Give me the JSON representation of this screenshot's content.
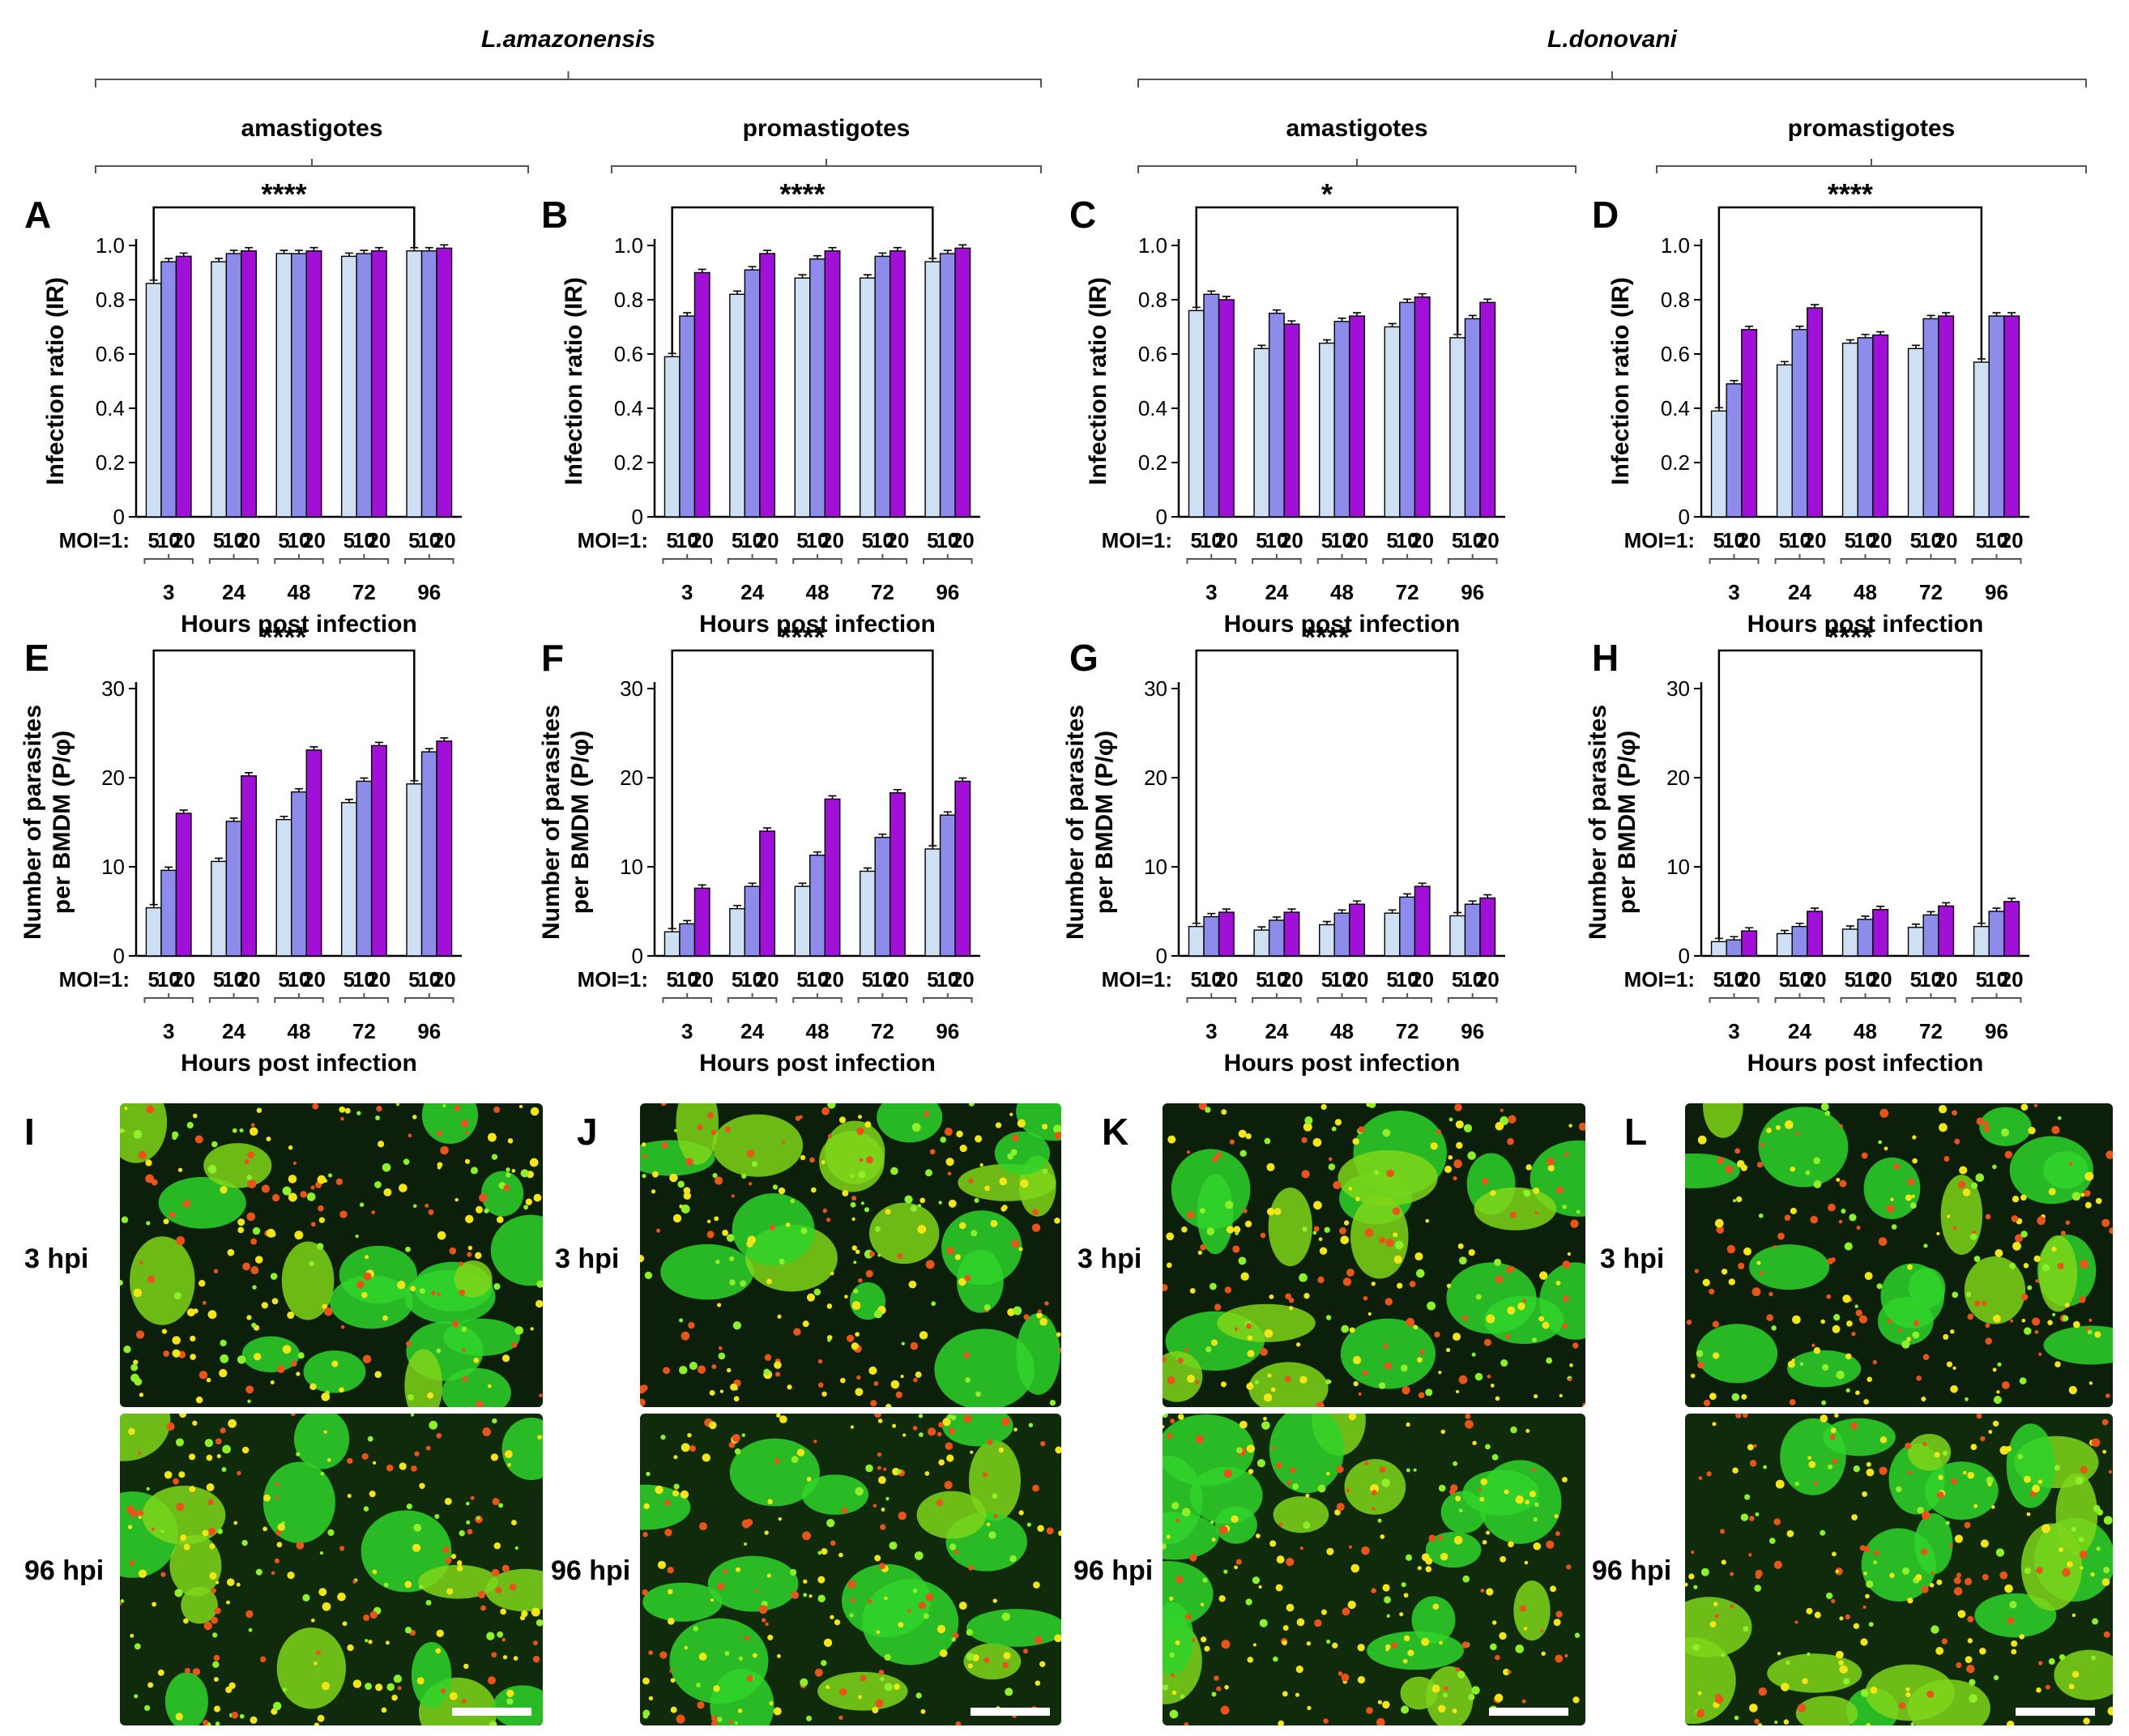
{
  "figure": {
    "species": [
      "L.amazonensis",
      "L.donovani"
    ],
    "stages": [
      "amastigotes",
      "promastigotes",
      "amastigotes",
      "promastigotes"
    ],
    "moi_prefix": "MOI=1:",
    "moi_levels": [
      "5",
      "10",
      "20"
    ],
    "series_colors": [
      "#cfe0f5",
      "#8d8cea",
      "#a010d6"
    ],
    "micrograph_panels": [
      {
        "letter": "I",
        "top_label": "3 hpi",
        "bottom_label": "96 hpi"
      },
      {
        "letter": "J",
        "top_label": "3 hpi",
        "bottom_label": "96 hpi"
      },
      {
        "letter": "K",
        "top_label": "3 hpi",
        "bottom_label": "96 hpi"
      },
      {
        "letter": "L",
        "top_label": "3 hpi",
        "bottom_label": "96 hpi"
      }
    ]
  },
  "chart_data": [
    {
      "panel": "A",
      "type": "bar",
      "species": "L.amazonensis",
      "stage": "amastigotes",
      "ylabel": "Infection ratio (IR)",
      "xlabel": "Hours post infection",
      "categories": [
        "3",
        "24",
        "48",
        "72",
        "96"
      ],
      "ylim": [
        0,
        1.0
      ],
      "yticks": [
        "0",
        "0.2",
        "0.4",
        "0.6",
        "0.8",
        "1.0"
      ],
      "significance": "****",
      "series": [
        {
          "name": "5",
          "values": [
            0.86,
            0.94,
            0.97,
            0.96,
            0.98
          ]
        },
        {
          "name": "10",
          "values": [
            0.94,
            0.97,
            0.97,
            0.97,
            0.98
          ]
        },
        {
          "name": "20",
          "values": [
            0.96,
            0.98,
            0.98,
            0.98,
            0.99
          ]
        }
      ]
    },
    {
      "panel": "B",
      "type": "bar",
      "species": "L.amazonensis",
      "stage": "promastigotes",
      "ylabel": "Infection ratio (IR)",
      "xlabel": "Hours post infection",
      "categories": [
        "3",
        "24",
        "48",
        "72",
        "96"
      ],
      "ylim": [
        0,
        1.0
      ],
      "yticks": [
        "0",
        "0.2",
        "0.4",
        "0.6",
        "0.8",
        "1.0"
      ],
      "significance": "****",
      "series": [
        {
          "name": "5",
          "values": [
            0.59,
            0.82,
            0.88,
            0.88,
            0.94
          ]
        },
        {
          "name": "10",
          "values": [
            0.74,
            0.91,
            0.95,
            0.96,
            0.97
          ]
        },
        {
          "name": "20",
          "values": [
            0.9,
            0.97,
            0.98,
            0.98,
            0.99
          ]
        }
      ]
    },
    {
      "panel": "C",
      "type": "bar",
      "species": "L.donovani",
      "stage": "amastigotes",
      "ylabel": "Infection ratio (IR)",
      "xlabel": "Hours post infection",
      "categories": [
        "3",
        "24",
        "48",
        "72",
        "96"
      ],
      "ylim": [
        0,
        1.0
      ],
      "yticks": [
        "0",
        "0.2",
        "0.4",
        "0.6",
        "0.8",
        "1.0"
      ],
      "significance": "*",
      "series": [
        {
          "name": "5",
          "values": [
            0.76,
            0.62,
            0.64,
            0.7,
            0.66
          ]
        },
        {
          "name": "10",
          "values": [
            0.82,
            0.75,
            0.72,
            0.79,
            0.73
          ]
        },
        {
          "name": "20",
          "values": [
            0.8,
            0.71,
            0.74,
            0.81,
            0.79
          ]
        }
      ]
    },
    {
      "panel": "D",
      "type": "bar",
      "species": "L.donovani",
      "stage": "promastigotes",
      "ylabel": "Infection ratio (IR)",
      "xlabel": "Hours post infection",
      "categories": [
        "3",
        "24",
        "48",
        "72",
        "96"
      ],
      "ylim": [
        0,
        1.0
      ],
      "yticks": [
        "0",
        "0.2",
        "0.4",
        "0.6",
        "0.8",
        "1.0"
      ],
      "significance": "****",
      "series": [
        {
          "name": "5",
          "values": [
            0.39,
            0.56,
            0.64,
            0.62,
            0.57
          ]
        },
        {
          "name": "10",
          "values": [
            0.49,
            0.69,
            0.66,
            0.73,
            0.74
          ]
        },
        {
          "name": "20",
          "values": [
            0.69,
            0.77,
            0.67,
            0.74,
            0.74
          ]
        }
      ]
    },
    {
      "panel": "E",
      "type": "bar",
      "species": "L.amazonensis",
      "stage": "amastigotes",
      "ylabel": "Number of parasites per BMDM (P/φ)",
      "xlabel": "Hours post infection",
      "categories": [
        "3",
        "24",
        "48",
        "72",
        "96"
      ],
      "ylim": [
        0,
        30
      ],
      "yticks": [
        "0",
        "10",
        "20",
        "30"
      ],
      "significance": "****",
      "series": [
        {
          "name": "5",
          "values": [
            5.4,
            10.6,
            15.3,
            17.2,
            19.3
          ]
        },
        {
          "name": "10",
          "values": [
            9.6,
            15.1,
            18.4,
            19.6,
            22.9
          ]
        },
        {
          "name": "20",
          "values": [
            16.0,
            20.2,
            23.1,
            23.6,
            24.1
          ]
        }
      ]
    },
    {
      "panel": "F",
      "type": "bar",
      "species": "L.amazonensis",
      "stage": "promastigotes",
      "ylabel": "Number of parasites per BMDM (P/φ)",
      "xlabel": "Hours post infection",
      "categories": [
        "3",
        "24",
        "48",
        "72",
        "96"
      ],
      "ylim": [
        0,
        30
      ],
      "yticks": [
        "0",
        "10",
        "20",
        "30"
      ],
      "significance": "****",
      "series": [
        {
          "name": "5",
          "values": [
            2.7,
            5.3,
            7.8,
            9.5,
            12.0
          ]
        },
        {
          "name": "10",
          "values": [
            3.6,
            7.8,
            11.3,
            13.3,
            15.8
          ]
        },
        {
          "name": "20",
          "values": [
            7.6,
            14.0,
            17.6,
            18.3,
            19.6
          ]
        }
      ]
    },
    {
      "panel": "G",
      "type": "bar",
      "species": "L.donovani",
      "stage": "amastigotes",
      "ylabel": "Number of parasites per BMDM (P/φ)",
      "xlabel": "Hours post infection",
      "categories": [
        "3",
        "24",
        "48",
        "72",
        "96"
      ],
      "ylim": [
        0,
        30
      ],
      "yticks": [
        "0",
        "10",
        "20",
        "30"
      ],
      "significance": "****",
      "series": [
        {
          "name": "5",
          "values": [
            3.3,
            2.9,
            3.5,
            4.8,
            4.5
          ]
        },
        {
          "name": "10",
          "values": [
            4.4,
            4.0,
            4.8,
            6.6,
            5.8
          ]
        },
        {
          "name": "20",
          "values": [
            4.9,
            4.9,
            5.8,
            7.8,
            6.5
          ]
        }
      ]
    },
    {
      "panel": "H",
      "type": "bar",
      "species": "L.donovani",
      "stage": "promastigotes",
      "ylabel": "Number of parasites per BMDM (P/φ)",
      "xlabel": "Hours post infection",
      "categories": [
        "3",
        "24",
        "48",
        "72",
        "96"
      ],
      "ylim": [
        0,
        30
      ],
      "yticks": [
        "0",
        "10",
        "20",
        "30"
      ],
      "significance": "****",
      "series": [
        {
          "name": "5",
          "values": [
            1.6,
            2.5,
            3.0,
            3.2,
            3.3
          ]
        },
        {
          "name": "10",
          "values": [
            1.8,
            3.3,
            4.1,
            4.6,
            5.0
          ]
        },
        {
          "name": "20",
          "values": [
            2.8,
            5.0,
            5.2,
            5.6,
            6.1
          ]
        }
      ]
    }
  ]
}
